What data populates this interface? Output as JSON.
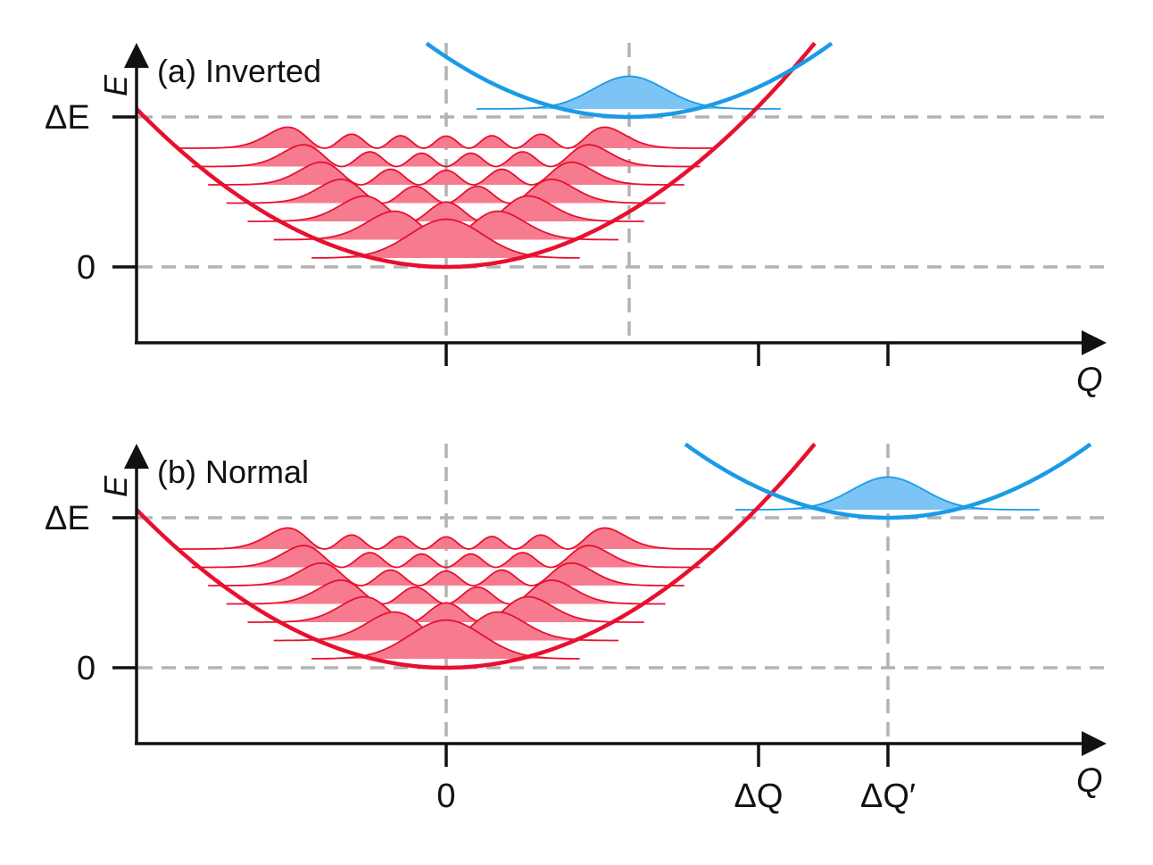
{
  "figure": {
    "colors": {
      "red": "#e8102e",
      "red_fill": "#f77b8e",
      "blue": "#1a9be6",
      "blue_fill": "#7cc4f5",
      "axis": "#111111",
      "grid": "#b3b3b3"
    },
    "ground_levels": 7,
    "panels": [
      {
        "id": "a",
        "title": "(a) Inverted",
        "y_axis_label": "E",
        "x_axis_label": "Q",
        "y_ticks": [
          "ΔE",
          "0"
        ],
        "x_tick_labels": [],
        "excited_parabola_offset": "",
        "dashed_vertical_label": ""
      },
      {
        "id": "b",
        "title": "(b) Normal",
        "y_axis_label": "E",
        "x_axis_label": "Q",
        "y_ticks": [
          "ΔE",
          "0"
        ],
        "x_tick_labels": [
          "0",
          "ΔQ",
          "ΔQ′"
        ]
      }
    ]
  }
}
